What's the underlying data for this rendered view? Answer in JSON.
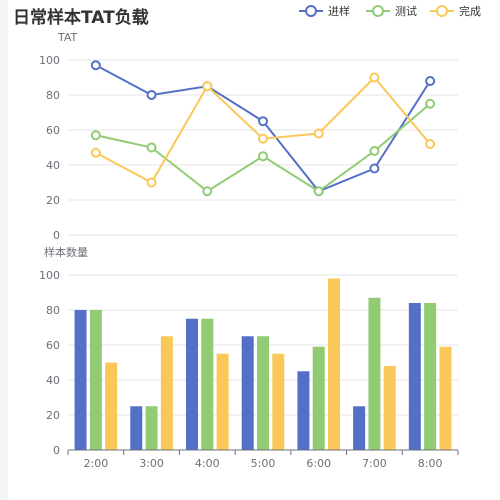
{
  "title": "日常样本TAT负载",
  "colors": {
    "blue": "#5470c6",
    "green": "#91cc75",
    "yellow": "#fac858",
    "grid": "#e6e6e6",
    "axis": "#6e7079",
    "text": "#6e7079"
  },
  "chart_data": [
    {
      "type": "line",
      "ylabel": "TAT",
      "ylim": [
        0,
        100
      ],
      "yticks": [
        0,
        20,
        40,
        60,
        80,
        100
      ],
      "categories": [
        "2:00",
        "3:00",
        "4:00",
        "5:00",
        "6:00",
        "7:00",
        "8:00"
      ],
      "legend_position": "top-right",
      "grid": true,
      "series": [
        {
          "name": "进样",
          "color": "#5470c6",
          "values": [
            97,
            80,
            85,
            65,
            25,
            38,
            88
          ]
        },
        {
          "name": "测试",
          "color": "#91cc75",
          "values": [
            57,
            50,
            25,
            45,
            25,
            48,
            75
          ]
        },
        {
          "name": "完成",
          "color": "#fac858",
          "values": [
            47,
            30,
            85,
            55,
            58,
            90,
            52
          ]
        }
      ]
    },
    {
      "type": "bar",
      "ylabel": "样本数量",
      "ylim": [
        0,
        100
      ],
      "yticks": [
        0,
        20,
        40,
        60,
        80,
        100
      ],
      "categories": [
        "2:00",
        "3:00",
        "4:00",
        "5:00",
        "6:00",
        "7:00",
        "8:00"
      ],
      "grid": true,
      "series": [
        {
          "name": "进样",
          "color": "#5470c6",
          "values": [
            80,
            25,
            75,
            65,
            45,
            25,
            84
          ]
        },
        {
          "name": "测试",
          "color": "#91cc75",
          "values": [
            80,
            25,
            75,
            65,
            59,
            87,
            84
          ]
        },
        {
          "name": "完成",
          "color": "#fac858",
          "values": [
            50,
            65,
            55,
            55,
            98,
            48,
            59
          ]
        }
      ]
    }
  ]
}
